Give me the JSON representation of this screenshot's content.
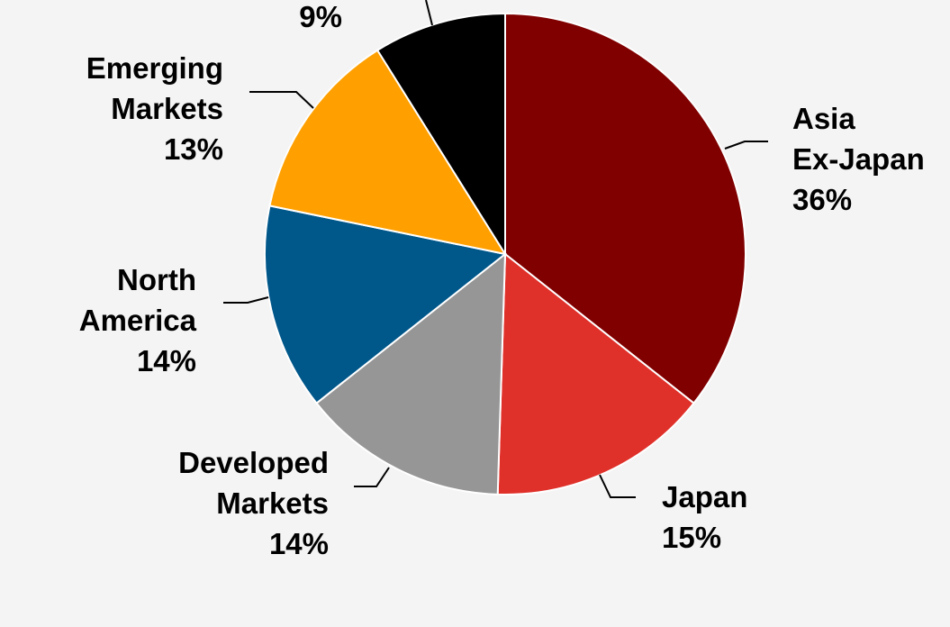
{
  "chart_data": {
    "type": "pie",
    "title": "",
    "slices": [
      {
        "label": [
          "Asia",
          "Ex-Japan"
        ],
        "value": 36,
        "value_label": "36%",
        "color": "#800000"
      },
      {
        "label": [
          "Japan"
        ],
        "value": 15,
        "value_label": "15%",
        "color": "#e0302a"
      },
      {
        "label": [
          "Developed",
          "Markets"
        ],
        "value": 14,
        "value_label": "14%",
        "color": "#969696"
      },
      {
        "label": [
          "North",
          "America"
        ],
        "value": 14,
        "value_label": "14%",
        "color": "#00578a"
      },
      {
        "label": [
          "Emerging",
          "Markets"
        ],
        "value": 13,
        "value_label": "13%",
        "color": "#ffa000"
      },
      {
        "label": [],
        "value": 9,
        "value_label": "9%",
        "color": "#000000"
      }
    ],
    "start_angle": "12 o'clock",
    "direction": "clockwise",
    "legend": "none"
  }
}
